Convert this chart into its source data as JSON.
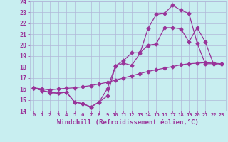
{
  "bg_color": "#c8eef0",
  "grid_color": "#b0b8d8",
  "line_color": "#993399",
  "markersize": 2.5,
  "linewidth": 0.9,
  "xlabel": "Windchill (Refroidissement éolien,°C)",
  "xlabel_fontsize": 6.5,
  "ytick_fontsize": 6,
  "xtick_fontsize": 5.2,
  "ylim": [
    14,
    24
  ],
  "xlim": [
    -0.5,
    23.5
  ],
  "yticks": [
    14,
    15,
    16,
    17,
    18,
    19,
    20,
    21,
    22,
    23,
    24
  ],
  "xticks": [
    0,
    1,
    2,
    3,
    4,
    5,
    6,
    7,
    8,
    9,
    10,
    11,
    12,
    13,
    14,
    15,
    16,
    17,
    18,
    19,
    20,
    21,
    22,
    23
  ],
  "line1_x": [
    0,
    1,
    2,
    3,
    4,
    5,
    6,
    7,
    8,
    9,
    10,
    11,
    12,
    13,
    14,
    15,
    16,
    17,
    18,
    19,
    20,
    21,
    22,
    23
  ],
  "line1_y": [
    16.1,
    15.85,
    15.65,
    15.6,
    15.7,
    14.8,
    14.65,
    14.35,
    14.8,
    15.35,
    18.1,
    18.35,
    18.15,
    19.25,
    21.55,
    22.8,
    22.9,
    23.65,
    23.2,
    22.9,
    20.2,
    18.3,
    18.3,
    18.3
  ],
  "line2_x": [
    0,
    1,
    2,
    3,
    4,
    5,
    6,
    7,
    8,
    9,
    10,
    11,
    12,
    13,
    14,
    15,
    16,
    17,
    18,
    19,
    20,
    21,
    22,
    23
  ],
  "line2_y": [
    16.1,
    16.0,
    15.9,
    16.0,
    16.05,
    16.1,
    16.2,
    16.3,
    16.45,
    16.6,
    16.8,
    17.0,
    17.2,
    17.4,
    17.6,
    17.75,
    17.9,
    18.05,
    18.2,
    18.3,
    18.35,
    18.4,
    18.35,
    18.3
  ],
  "line3_x": [
    0,
    1,
    2,
    3,
    4,
    5,
    6,
    7,
    8,
    9,
    10,
    11,
    12,
    13,
    14,
    15,
    16,
    17,
    18,
    19,
    20,
    21,
    22,
    23
  ],
  "line3_y": [
    16.1,
    15.85,
    15.7,
    15.6,
    15.7,
    14.8,
    14.65,
    14.35,
    14.8,
    16.0,
    18.1,
    18.6,
    19.3,
    19.3,
    20.0,
    20.1,
    21.6,
    21.6,
    21.5,
    20.3,
    21.6,
    20.3,
    18.3,
    18.3
  ]
}
